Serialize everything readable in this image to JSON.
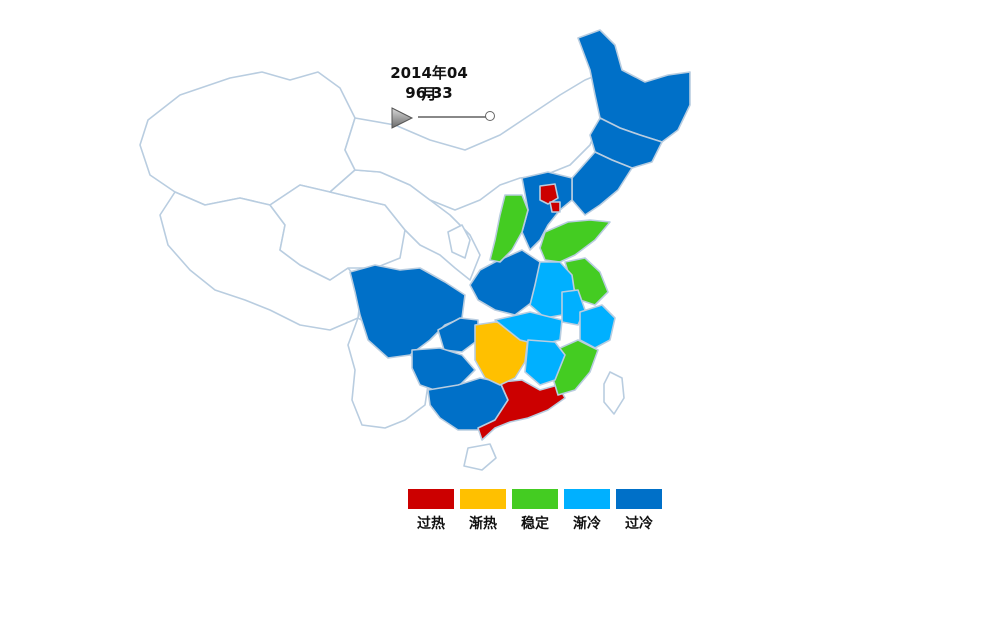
{
  "timeline": {
    "date": "2014年04月",
    "value": "96.33",
    "play_icon": "play-triangle-icon",
    "position": 1.0
  },
  "legend": [
    {
      "label": "过热",
      "color": "#cc0000"
    },
    {
      "label": "渐热",
      "color": "#ffc000"
    },
    {
      "label": "稳定",
      "color": "#44cc22"
    },
    {
      "label": "渐冷",
      "color": "#00b0ff"
    },
    {
      "label": "过冷",
      "color": "#0070c8"
    }
  ],
  "colors": {
    "border": "#b9cde0",
    "background": "#ffffff"
  }
}
